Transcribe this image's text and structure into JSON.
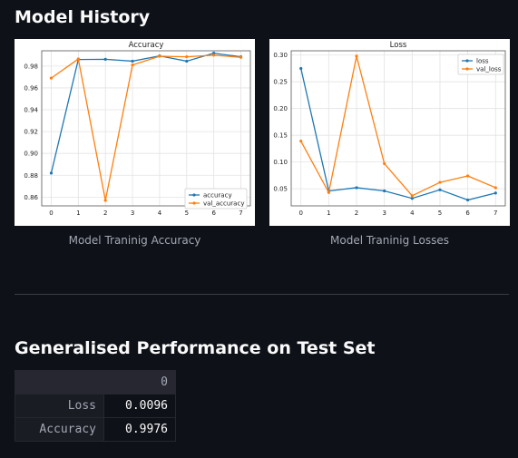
{
  "section_title": "Model History",
  "charts": [
    {
      "caption": "Model Traninig Accuracy",
      "chart_data": {
        "type": "line",
        "title": "Accuracy",
        "x": [
          0,
          1,
          2,
          3,
          4,
          5,
          6,
          7
        ],
        "xticks": [
          "0",
          "1",
          "2",
          "3",
          "4",
          "5",
          "6",
          "7"
        ],
        "yticks": [
          "0.86",
          "0.88",
          "0.90",
          "0.92",
          "0.94",
          "0.96",
          "0.98"
        ],
        "ylim": [
          0.852,
          0.994
        ],
        "grid": true,
        "legend": "bottom-right",
        "series": [
          {
            "name": "accuracy",
            "color": "#1f77b4",
            "values": [
              0.882,
              0.986,
              0.9862,
              0.9845,
              0.9893,
              0.9845,
              0.9918,
              0.9885
            ]
          },
          {
            "name": "val_accuracy",
            "color": "#ff7f0e",
            "values": [
              0.969,
              0.9865,
              0.857,
              0.981,
              0.989,
              0.9885,
              0.99,
              0.988
            ]
          }
        ]
      }
    },
    {
      "caption": "Model Traninig Losses",
      "chart_data": {
        "type": "line",
        "title": "Loss",
        "x": [
          0,
          1,
          2,
          3,
          4,
          5,
          6,
          7
        ],
        "xticks": [
          "0",
          "1",
          "2",
          "3",
          "4",
          "5",
          "6",
          "7"
        ],
        "yticks": [
          "0.05",
          "0.10",
          "0.15",
          "0.20",
          "0.25",
          "0.30"
        ],
        "ylim": [
          0.018,
          0.308
        ],
        "grid": true,
        "legend": "top-right",
        "series": [
          {
            "name": "loss",
            "color": "#1f77b4",
            "values": [
              0.275,
              0.046,
              0.052,
              0.046,
              0.032,
              0.048,
              0.029,
              0.042
            ]
          },
          {
            "name": "val_loss",
            "color": "#ff7f0e",
            "values": [
              0.139,
              0.043,
              0.298,
              0.097,
              0.037,
              0.062,
              0.074,
              0.052
            ]
          }
        ]
      }
    }
  ],
  "performance_title": "Generalised Performance on Test Set",
  "performance_table": {
    "column_header": "0",
    "rows": [
      {
        "label": "Loss",
        "value": "0.0096"
      },
      {
        "label": "Accuracy",
        "value": "0.9976"
      }
    ]
  }
}
